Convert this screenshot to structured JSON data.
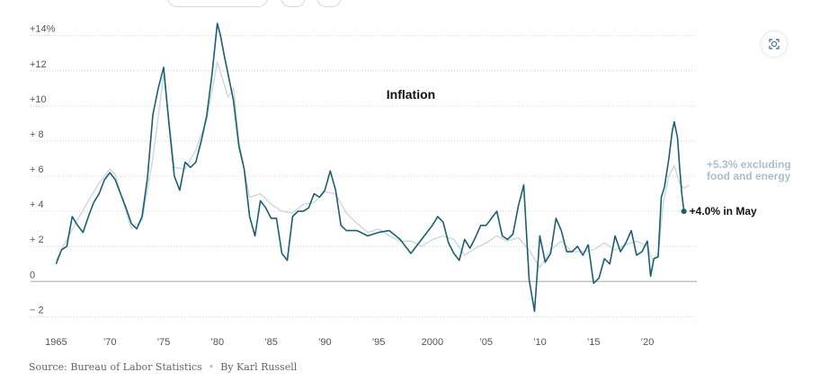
{
  "toolbar": {
    "zoom_icon": "expand-icon"
  },
  "chart_data": {
    "type": "line",
    "title": "Inflation",
    "xlabel": "",
    "ylabel": "",
    "xlim": [
      1964.8,
      2024.6
    ],
    "ylim": [
      -2.8,
      14.6
    ],
    "y_ticks": [
      14,
      12,
      10,
      8,
      6,
      4,
      2,
      0,
      -2
    ],
    "y_tick_labels": [
      "+14%",
      "+12",
      "+10",
      "+ 8",
      "+ 6",
      "+ 4",
      "+ 2",
      "0",
      "− 2"
    ],
    "x_ticks": [
      1965,
      1970,
      1975,
      1980,
      1985,
      1990,
      1995,
      2000,
      2005,
      2010,
      2015,
      2020
    ],
    "x_tick_labels": [
      "1965",
      "’70",
      "’75",
      "’80",
      "’85",
      "’90",
      "’95",
      "2000",
      "’05",
      "’10",
      "’15",
      "’20"
    ],
    "grid": true,
    "colors": {
      "headline": "#1b5f70",
      "core": "#c9d8e2",
      "core_label": "#a9bfd0",
      "zero_line": "#b8b8b8",
      "grid": "#cfcfcf"
    },
    "series": [
      {
        "key": "headline",
        "x": [
          1965.0,
          1965.5,
          1966.0,
          1966.5,
          1967.0,
          1967.5,
          1968.0,
          1968.5,
          1969.0,
          1969.5,
          1970.0,
          1970.5,
          1971.0,
          1971.5,
          1972.0,
          1972.5,
          1973.0,
          1973.5,
          1974.0,
          1974.5,
          1975.0,
          1975.5,
          1976.0,
          1976.5,
          1977.0,
          1977.5,
          1978.0,
          1978.5,
          1979.0,
          1979.5,
          1980.0,
          1980.3,
          1980.6,
          1981.0,
          1981.5,
          1982.0,
          1982.5,
          1983.0,
          1983.5,
          1984.0,
          1984.5,
          1985.0,
          1985.5,
          1986.0,
          1986.5,
          1987.0,
          1987.5,
          1988.0,
          1988.5,
          1989.0,
          1989.5,
          1990.0,
          1990.5,
          1991.0,
          1991.5,
          1992.0,
          1993.0,
          1994.0,
          1995.0,
          1996.0,
          1997.0,
          1998.0,
          1999.0,
          2000.0,
          2000.5,
          2001.0,
          2001.5,
          2002.0,
          2002.5,
          2003.0,
          2003.5,
          2004.0,
          2004.5,
          2005.0,
          2005.5,
          2006.0,
          2006.5,
          2007.0,
          2007.5,
          2008.0,
          2008.5,
          2009.0,
          2009.5,
          2010.0,
          2010.5,
          2011.0,
          2011.5,
          2012.0,
          2012.5,
          2013.0,
          2013.5,
          2014.0,
          2014.5,
          2015.0,
          2015.5,
          2016.0,
          2016.5,
          2017.0,
          2017.5,
          2018.0,
          2018.5,
          2019.0,
          2019.5,
          2020.0,
          2020.3,
          2020.6,
          2021.0,
          2021.3,
          2021.6,
          2022.0,
          2022.3,
          2022.5,
          2022.8,
          2023.0,
          2023.2,
          2023.4
        ],
        "y": [
          1.0,
          1.8,
          2.0,
          3.7,
          3.2,
          2.8,
          3.7,
          4.5,
          5.0,
          5.8,
          6.2,
          5.8,
          5.0,
          4.2,
          3.3,
          3.0,
          3.7,
          5.9,
          9.5,
          11.0,
          12.2,
          9.0,
          6.0,
          5.2,
          6.8,
          6.5,
          6.8,
          8.0,
          9.4,
          11.8,
          14.7,
          14.0,
          13.0,
          11.8,
          10.3,
          7.7,
          6.4,
          3.7,
          2.6,
          4.6,
          4.2,
          3.6,
          3.6,
          1.6,
          1.2,
          3.7,
          4.0,
          4.0,
          4.2,
          5.0,
          4.8,
          5.2,
          6.3,
          5.2,
          3.2,
          2.9,
          2.9,
          2.6,
          2.8,
          2.9,
          2.4,
          1.6,
          2.4,
          3.2,
          3.7,
          3.4,
          2.2,
          1.6,
          1.2,
          2.4,
          1.9,
          2.5,
          3.2,
          3.2,
          3.6,
          4.0,
          2.6,
          2.4,
          2.7,
          4.3,
          5.5,
          0.1,
          -1.7,
          2.6,
          1.1,
          1.6,
          3.6,
          2.9,
          1.7,
          1.7,
          2.0,
          1.5,
          2.1,
          -0.1,
          0.2,
          1.3,
          1.0,
          2.6,
          1.7,
          2.2,
          2.9,
          1.5,
          1.7,
          2.3,
          0.3,
          1.3,
          1.4,
          4.8,
          5.4,
          7.0,
          8.5,
          9.1,
          8.2,
          6.5,
          5.0,
          4.0
        ]
      },
      {
        "key": "core",
        "x": [
          1965.0,
          1966.0,
          1967.0,
          1968.0,
          1969.0,
          1970.0,
          1970.5,
          1971.0,
          1972.0,
          1973.0,
          1974.0,
          1975.0,
          1976.0,
          1977.0,
          1978.0,
          1979.0,
          1980.0,
          1981.0,
          1981.5,
          1982.0,
          1983.0,
          1984.0,
          1985.0,
          1986.0,
          1987.0,
          1988.0,
          1989.0,
          1990.0,
          1991.0,
          1992.0,
          1993.0,
          1994.0,
          1995.0,
          1996.0,
          1997.0,
          1998.0,
          1999.0,
          2000.0,
          2001.0,
          2002.0,
          2003.0,
          2004.0,
          2005.0,
          2006.0,
          2007.0,
          2008.0,
          2009.0,
          2010.0,
          2011.0,
          2012.0,
          2013.0,
          2014.0,
          2015.0,
          2016.0,
          2017.0,
          2018.0,
          2019.0,
          2020.0,
          2020.5,
          2021.0,
          2021.5,
          2022.0,
          2022.5,
          2023.0,
          2023.4,
          2023.9
        ],
        "y": [
          1.2,
          2.4,
          3.5,
          4.6,
          5.6,
          6.4,
          6.1,
          5.0,
          3.0,
          3.5,
          7.0,
          11.8,
          6.5,
          6.4,
          7.5,
          9.2,
          12.5,
          10.5,
          11.0,
          8.0,
          4.8,
          5.0,
          4.4,
          4.0,
          3.9,
          4.4,
          4.5,
          5.1,
          5.0,
          3.9,
          3.3,
          2.8,
          3.0,
          2.6,
          2.3,
          2.3,
          2.0,
          2.4,
          2.6,
          2.4,
          1.5,
          1.9,
          2.2,
          2.6,
          2.3,
          2.5,
          1.8,
          0.8,
          1.8,
          2.3,
          1.7,
          1.7,
          1.8,
          2.2,
          1.8,
          2.1,
          2.3,
          2.0,
          1.2,
          1.6,
          4.5,
          6.0,
          6.6,
          5.6,
          5.3,
          5.5
        ]
      }
    ],
    "annotations": [
      {
        "key": "headline",
        "lines": [
          "+4.0% in May"
        ]
      },
      {
        "key": "core",
        "lines": [
          "+5.3% excluding",
          "food and energy"
        ]
      }
    ]
  },
  "source": {
    "source_text": "Source: Bureau of Labor Statistics",
    "byline": "By Karl Russell"
  }
}
